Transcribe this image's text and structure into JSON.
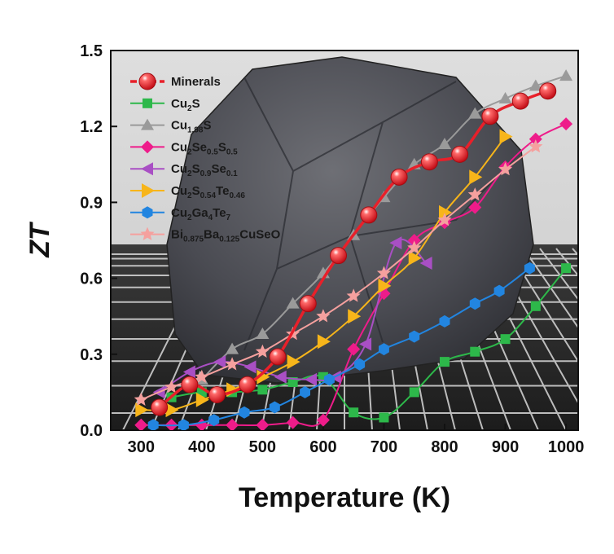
{
  "chart_data": {
    "type": "line",
    "title": "",
    "xlabel": "Temperature (K)",
    "ylabel": "ZT",
    "xlim": [
      250,
      1020
    ],
    "ylim": [
      0.0,
      1.5
    ],
    "xticks": [
      "300",
      "400",
      "500",
      "600",
      "700",
      "800",
      "900",
      "1000"
    ],
    "yticks": [
      "0.0",
      "0.3",
      "0.6",
      "0.9",
      "1.2",
      "1.5"
    ],
    "grid": false,
    "legend_position": "top-left",
    "background": "photo of a dark mineral rock on a tiled grid",
    "series": [
      {
        "name": "Minerals",
        "color": "#e8202a",
        "marker": "sphere",
        "x": [
          330,
          380,
          425,
          475,
          525,
          575,
          625,
          675,
          725,
          775,
          825,
          875,
          925,
          970
        ],
        "y": [
          0.09,
          0.18,
          0.14,
          0.18,
          0.29,
          0.5,
          0.69,
          0.85,
          1.0,
          1.06,
          1.09,
          1.24,
          1.3,
          1.34
        ]
      },
      {
        "name": "Cu2S",
        "color": "#2db84a",
        "marker": "square",
        "x": [
          350,
          400,
          450,
          500,
          550,
          600,
          650,
          700,
          750,
          800,
          850,
          900,
          950,
          1000
        ],
        "y": [
          0.13,
          0.15,
          0.15,
          0.16,
          0.19,
          0.21,
          0.07,
          0.05,
          0.15,
          0.27,
          0.31,
          0.36,
          0.49,
          0.64
        ]
      },
      {
        "name": "Cu1.98S",
        "color": "#9a9a9a",
        "marker": "triangle-up",
        "x": [
          400,
          450,
          500,
          550,
          600,
          650,
          700,
          750,
          800,
          850,
          900,
          950,
          1000
        ],
        "y": [
          0.2,
          0.32,
          0.38,
          0.5,
          0.62,
          0.77,
          0.92,
          1.05,
          1.13,
          1.25,
          1.31,
          1.36,
          1.4
        ]
      },
      {
        "name": "Cu2Se0.5S0.5",
        "color": "#ee1c8a",
        "marker": "diamond",
        "x": [
          300,
          350,
          400,
          450,
          500,
          550,
          600,
          650,
          700,
          750,
          800,
          850,
          900,
          950,
          1000
        ],
        "y": [
          0.02,
          0.02,
          0.02,
          0.02,
          0.02,
          0.03,
          0.04,
          0.32,
          0.54,
          0.75,
          0.82,
          0.88,
          1.04,
          1.15,
          1.21
        ]
      },
      {
        "name": "Cu2S0.9Se0.1",
        "color": "#a94fc4",
        "marker": "triangle-left",
        "x": [
          330,
          380,
          430,
          480,
          530,
          580,
          620,
          670,
          720,
          770
        ],
        "y": [
          0.15,
          0.23,
          0.27,
          0.25,
          0.21,
          0.2,
          0.21,
          0.34,
          0.74,
          0.66
        ]
      },
      {
        "name": "Cu2S0.54Te0.46",
        "color": "#f7b51a",
        "marker": "triangle-right",
        "x": [
          300,
          350,
          400,
          450,
          500,
          550,
          600,
          650,
          700,
          750,
          800,
          850,
          900
        ],
        "y": [
          0.08,
          0.08,
          0.12,
          0.16,
          0.21,
          0.27,
          0.35,
          0.45,
          0.57,
          0.68,
          0.86,
          1.0,
          1.16
        ]
      },
      {
        "name": "Cu2Ga4Te7",
        "color": "#2285e0",
        "marker": "hexagon",
        "x": [
          320,
          370,
          420,
          470,
          520,
          570,
          610,
          660,
          700,
          750,
          800,
          850,
          890,
          940
        ],
        "y": [
          0.02,
          0.02,
          0.04,
          0.07,
          0.09,
          0.15,
          0.2,
          0.26,
          0.32,
          0.37,
          0.43,
          0.5,
          0.55,
          0.64
        ]
      },
      {
        "name": "Bi0.875Ba0.125CuSeO",
        "color": "#f5a09e",
        "marker": "star",
        "x": [
          300,
          350,
          400,
          450,
          500,
          550,
          600,
          650,
          700,
          750,
          800,
          850,
          900,
          950
        ],
        "y": [
          0.12,
          0.17,
          0.21,
          0.26,
          0.31,
          0.38,
          0.45,
          0.53,
          0.62,
          0.72,
          0.83,
          0.93,
          1.03,
          1.12
        ]
      }
    ]
  },
  "legend": [
    {
      "parts": [
        [
          "Minerals",
          "n"
        ]
      ]
    },
    {
      "parts": [
        [
          "Cu",
          "n"
        ],
        [
          "2",
          "sub"
        ],
        [
          "S",
          "n"
        ]
      ]
    },
    {
      "parts": [
        [
          "Cu",
          "n"
        ],
        [
          "1.98",
          "sub"
        ],
        [
          "S",
          "n"
        ]
      ]
    },
    {
      "parts": [
        [
          "Cu",
          "n"
        ],
        [
          "2",
          "sub"
        ],
        [
          "Se",
          "n"
        ],
        [
          "0.5",
          "sub"
        ],
        [
          "S",
          "n"
        ],
        [
          "0.5",
          "sub"
        ]
      ]
    },
    {
      "parts": [
        [
          "Cu",
          "n"
        ],
        [
          "2",
          "sub"
        ],
        [
          "S",
          "n"
        ],
        [
          "0.9",
          "sub"
        ],
        [
          "Se",
          "n"
        ],
        [
          "0.1",
          "sub"
        ]
      ]
    },
    {
      "parts": [
        [
          "Cu",
          "n"
        ],
        [
          "2",
          "sub"
        ],
        [
          "S",
          "n"
        ],
        [
          "0.54",
          "sub"
        ],
        [
          "Te",
          "n"
        ],
        [
          "0.46",
          "sub"
        ]
      ]
    },
    {
      "parts": [
        [
          "Cu",
          "n"
        ],
        [
          "2",
          "sub"
        ],
        [
          "Ga",
          "n"
        ],
        [
          "4",
          "sub"
        ],
        [
          "Te",
          "n"
        ],
        [
          "7",
          "sub"
        ]
      ]
    },
    {
      "parts": [
        [
          "Bi",
          "n"
        ],
        [
          "0.875",
          "sub"
        ],
        [
          "Ba",
          "n"
        ],
        [
          "0.125",
          "sub"
        ],
        [
          "CuSeO",
          "n"
        ]
      ]
    }
  ]
}
